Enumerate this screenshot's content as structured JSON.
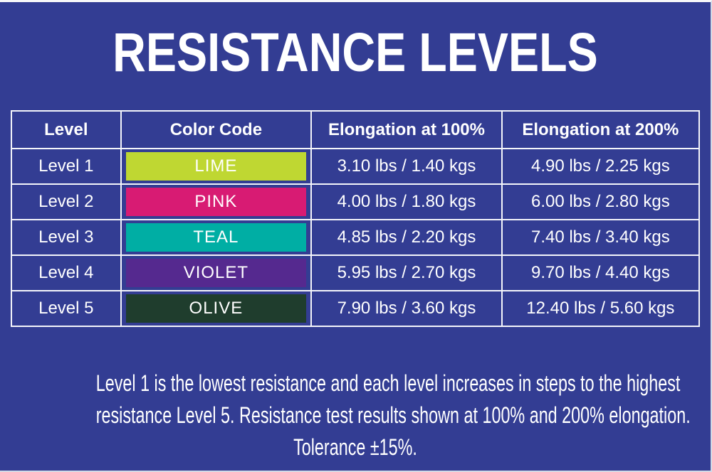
{
  "title": "RESISTANCE LEVELS",
  "colors": {
    "background": "#333D93",
    "table_border": "#FFFFFF",
    "text": "#FFFFFF"
  },
  "chart_data": {
    "type": "table",
    "title": "RESISTANCE LEVELS",
    "columns": [
      "Level",
      "Color Code",
      "Elongation at 100%",
      "Elongation at 200%"
    ],
    "rows": [
      [
        "Level 1",
        "LIME",
        "3.10 lbs / 1.40 kgs",
        "4.90 lbs / 2.25 kgs"
      ],
      [
        "Level 2",
        "PINK",
        "4.00 lbs / 1.80 kgs",
        "6.00 lbs / 2.80 kgs"
      ],
      [
        "Level 3",
        "TEAL",
        "4.85 lbs / 2.20 kgs",
        "7.40 lbs / 3.40 kgs"
      ],
      [
        "Level 4",
        "VIOLET",
        "5.95 lbs / 2.70 kgs",
        "9.70 lbs / 4.40 kgs"
      ],
      [
        "Level 5",
        "OLIVE",
        "7.90 lbs / 3.60 kgs",
        "12.40 lbs / 5.60 kgs"
      ]
    ],
    "swatch_colors": [
      {
        "label": "LIME",
        "hex": "#BFD732"
      },
      {
        "label": "PINK",
        "hex": "#D81B73"
      },
      {
        "label": "TEAL",
        "hex": "#00AEA4"
      },
      {
        "label": "VIOLET",
        "hex": "#55298F"
      },
      {
        "label": "OLIVE",
        "hex": "#1F3D2D"
      }
    ],
    "numeric": {
      "elongation_100_lbs": [
        3.1,
        4.0,
        4.85,
        5.95,
        7.9
      ],
      "elongation_100_kgs": [
        1.4,
        1.8,
        2.2,
        2.7,
        3.6
      ],
      "elongation_200_lbs": [
        4.9,
        6.0,
        7.4,
        9.7,
        12.4
      ],
      "elongation_200_kgs": [
        2.25,
        2.8,
        3.4,
        4.4,
        5.6
      ]
    },
    "note": "Level 1 is the lowest resistance and each level increases in steps to the highest resistance Level 5. Resistance test results shown at 100% and 200% elongation. Tolerance ±15%."
  },
  "footer": {
    "lines": [
      "Level 1 is the lowest resistance and each level increases in steps to the highest",
      "resistance Level 5. Resistance test results shown at 100%  and 200% elongation.",
      "Tolerance ±15%."
    ]
  }
}
